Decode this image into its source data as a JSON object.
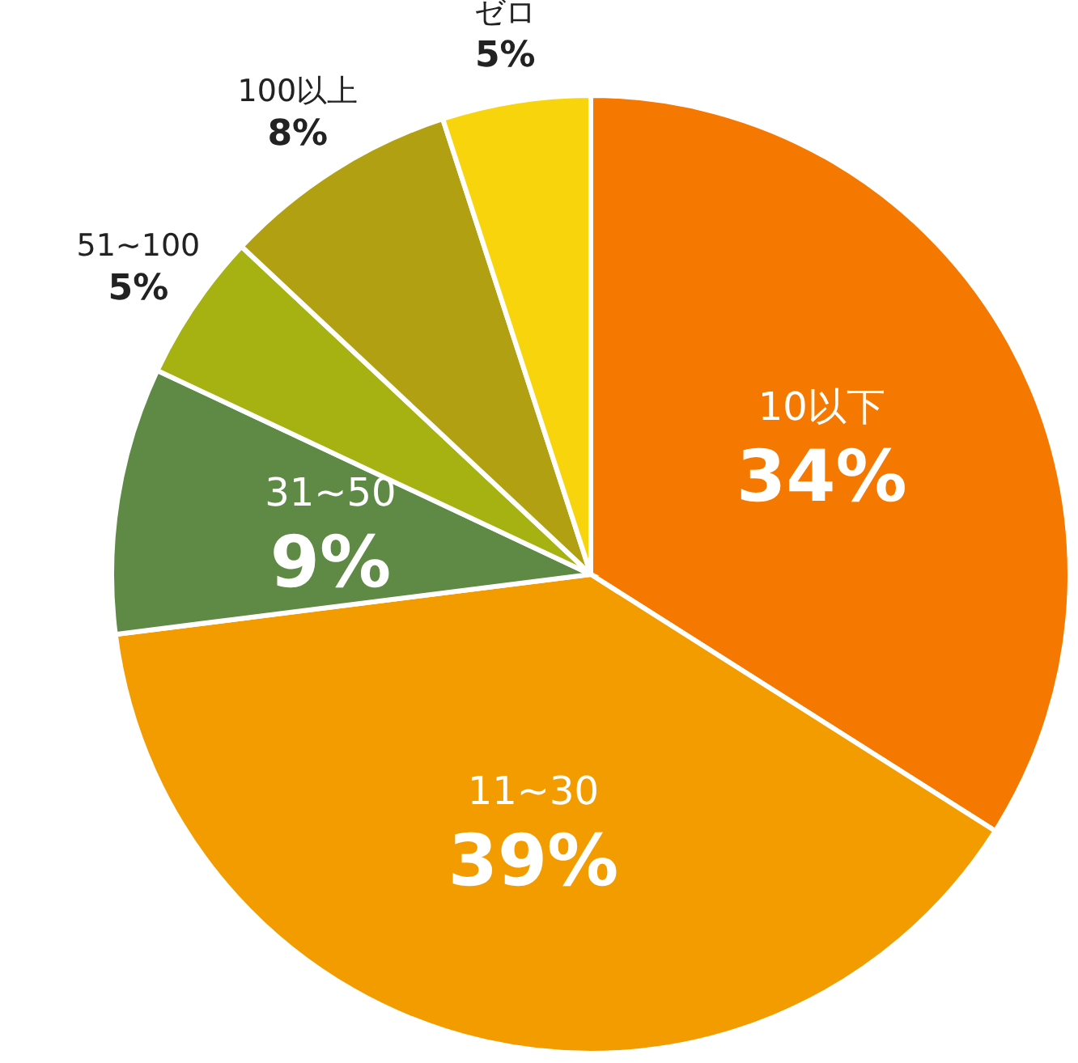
{
  "chart_data": {
    "type": "pie",
    "categories": [
      "10以下",
      "11~30",
      "31~50",
      "51~100",
      "100以上",
      "ゼロ"
    ],
    "values": [
      34,
      39,
      9,
      5,
      8,
      5
    ],
    "colors": [
      "#f57900",
      "#f39c00",
      "#5f8a45",
      "#a6b112",
      "#b1a112",
      "#f7d40c"
    ],
    "value_labels": [
      "34%",
      "39%",
      "9%",
      "5%",
      "8%",
      "5%"
    ]
  }
}
